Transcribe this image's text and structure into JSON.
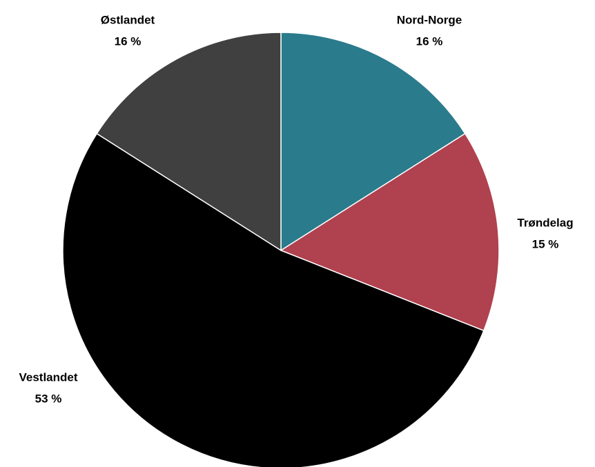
{
  "chart_data": {
    "type": "pie",
    "categories": [
      "Nord-Norge",
      "Trøndelag",
      "Vestlandet",
      "Østlandet"
    ],
    "values": [
      16,
      15,
      53,
      16
    ],
    "value_labels": [
      "16 %",
      "15 %",
      "53 %",
      "16 %"
    ],
    "colors": [
      "#2a7b8c",
      "#b0414f",
      "#000000",
      "#404040"
    ]
  }
}
